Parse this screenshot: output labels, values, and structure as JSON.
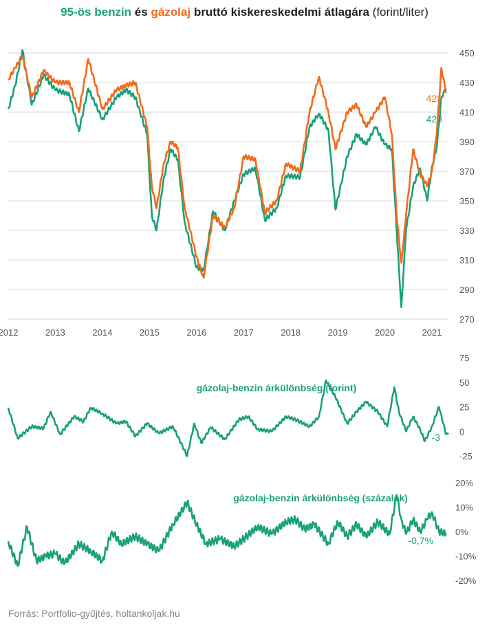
{
  "title": {
    "part1": "95-ös benzin",
    "part2": "és",
    "part3": "gázolaj",
    "part4": "bruttó kiskereskedelmi átlagára",
    "part5": "(forint/liter)"
  },
  "source": "Forrás: Portfolio-gyűjtés, holtankoljak.hu",
  "colors": {
    "benzin": "#1aa07a",
    "gazolaj": "#f26a1b",
    "grid": "#d9d9d9",
    "text": "#555555"
  },
  "chart_data": [
    {
      "type": "line",
      "x_labels": [
        "2012",
        "2013",
        "2014",
        "2015",
        "2016",
        "2017",
        "2018",
        "2019",
        "2020",
        "2021"
      ],
      "yticks": [
        "450",
        "430",
        "410",
        "390",
        "370",
        "350",
        "330",
        "310",
        "290",
        "270"
      ],
      "ylim": [
        270,
        450
      ],
      "series": [
        {
          "name": "95-ös benzin",
          "end_label": "426",
          "points": [
            [
              2012.0,
              412
            ],
            [
              2012.15,
              428
            ],
            [
              2012.3,
              452
            ],
            [
              2012.5,
              415
            ],
            [
              2012.75,
              435
            ],
            [
              2013.0,
              425
            ],
            [
              2013.3,
              422
            ],
            [
              2013.5,
              397
            ],
            [
              2013.7,
              426
            ],
            [
              2014.0,
              405
            ],
            [
              2014.3,
              420
            ],
            [
              2014.5,
              425
            ],
            [
              2014.7,
              420
            ],
            [
              2014.95,
              395
            ],
            [
              2015.05,
              340
            ],
            [
              2015.15,
              330
            ],
            [
              2015.3,
              365
            ],
            [
              2015.45,
              385
            ],
            [
              2015.6,
              378
            ],
            [
              2015.75,
              335
            ],
            [
              2016.0,
              305
            ],
            [
              2016.15,
              303
            ],
            [
              2016.35,
              343
            ],
            [
              2016.6,
              330
            ],
            [
              2016.8,
              350
            ],
            [
              2017.0,
              368
            ],
            [
              2017.25,
              372
            ],
            [
              2017.45,
              337
            ],
            [
              2017.7,
              345
            ],
            [
              2017.9,
              367
            ],
            [
              2018.2,
              366
            ],
            [
              2018.4,
              400
            ],
            [
              2018.6,
              409
            ],
            [
              2018.8,
              398
            ],
            [
              2018.95,
              344
            ],
            [
              2019.2,
              380
            ],
            [
              2019.4,
              395
            ],
            [
              2019.6,
              388
            ],
            [
              2019.8,
              400
            ],
            [
              2020.0,
              388
            ],
            [
              2020.15,
              385
            ],
            [
              2020.25,
              330
            ],
            [
              2020.35,
              278
            ],
            [
              2020.45,
              330
            ],
            [
              2020.6,
              360
            ],
            [
              2020.75,
              372
            ],
            [
              2020.9,
              350
            ],
            [
              2021.0,
              373
            ],
            [
              2021.1,
              385
            ],
            [
              2021.2,
              420
            ],
            [
              2021.3,
              426
            ]
          ]
        },
        {
          "name": "gázolaj",
          "end_label": "423",
          "points": [
            [
              2012.0,
              432
            ],
            [
              2012.15,
              440
            ],
            [
              2012.3,
              448
            ],
            [
              2012.5,
              420
            ],
            [
              2012.75,
              438
            ],
            [
              2013.0,
              430
            ],
            [
              2013.3,
              430
            ],
            [
              2013.5,
              410
            ],
            [
              2013.7,
              446
            ],
            [
              2014.0,
              412
            ],
            [
              2014.3,
              425
            ],
            [
              2014.5,
              428
            ],
            [
              2014.7,
              430
            ],
            [
              2014.95,
              400
            ],
            [
              2015.05,
              360
            ],
            [
              2015.15,
              345
            ],
            [
              2015.3,
              375
            ],
            [
              2015.45,
              390
            ],
            [
              2015.6,
              386
            ],
            [
              2015.75,
              345
            ],
            [
              2016.0,
              312
            ],
            [
              2016.15,
              298
            ],
            [
              2016.35,
              340
            ],
            [
              2016.6,
              332
            ],
            [
              2016.8,
              345
            ],
            [
              2017.0,
              380
            ],
            [
              2017.25,
              378
            ],
            [
              2017.45,
              342
            ],
            [
              2017.7,
              350
            ],
            [
              2017.9,
              375
            ],
            [
              2018.2,
              370
            ],
            [
              2018.4,
              410
            ],
            [
              2018.6,
              434
            ],
            [
              2018.8,
              410
            ],
            [
              2018.95,
              385
            ],
            [
              2019.2,
              410
            ],
            [
              2019.4,
              415
            ],
            [
              2019.6,
              400
            ],
            [
              2019.8,
              410
            ],
            [
              2020.0,
              420
            ],
            [
              2020.15,
              395
            ],
            [
              2020.25,
              340
            ],
            [
              2020.35,
              308
            ],
            [
              2020.45,
              340
            ],
            [
              2020.6,
              385
            ],
            [
              2020.75,
              368
            ],
            [
              2020.9,
              360
            ],
            [
              2021.0,
              370
            ],
            [
              2021.1,
              395
            ],
            [
              2021.2,
              440
            ],
            [
              2021.3,
              423
            ]
          ]
        }
      ]
    },
    {
      "type": "line",
      "yticks": [
        "75",
        "50",
        "25",
        "0",
        "-25"
      ],
      "ylim": [
        -25,
        75
      ],
      "series": [
        {
          "name": "gázolaj-benzin árkülönbség (forint)",
          "end_label": "-3",
          "points": [
            [
              2012.0,
              24
            ],
            [
              2012.2,
              -7
            ],
            [
              2012.5,
              5
            ],
            [
              2012.75,
              3
            ],
            [
              2012.9,
              20
            ],
            [
              2013.1,
              -3
            ],
            [
              2013.4,
              15
            ],
            [
              2013.6,
              10
            ],
            [
              2013.75,
              24
            ],
            [
              2014.0,
              18
            ],
            [
              2014.3,
              8
            ],
            [
              2014.5,
              10
            ],
            [
              2014.7,
              -5
            ],
            [
              2014.95,
              8
            ],
            [
              2015.2,
              -2
            ],
            [
              2015.5,
              5
            ],
            [
              2015.8,
              -25
            ],
            [
              2015.95,
              8
            ],
            [
              2016.1,
              -12
            ],
            [
              2016.3,
              4
            ],
            [
              2016.6,
              -8
            ],
            [
              2016.9,
              12
            ],
            [
              2017.1,
              15
            ],
            [
              2017.3,
              2
            ],
            [
              2017.6,
              0
            ],
            [
              2017.9,
              15
            ],
            [
              2018.1,
              12
            ],
            [
              2018.4,
              5
            ],
            [
              2018.6,
              15
            ],
            [
              2018.75,
              52
            ],
            [
              2018.95,
              35
            ],
            [
              2019.2,
              8
            ],
            [
              2019.4,
              20
            ],
            [
              2019.6,
              30
            ],
            [
              2019.85,
              20
            ],
            [
              2020.05,
              5
            ],
            [
              2020.2,
              45
            ],
            [
              2020.3,
              20
            ],
            [
              2020.45,
              0
            ],
            [
              2020.6,
              15
            ],
            [
              2020.75,
              2
            ],
            [
              2020.85,
              -10
            ],
            [
              2021.0,
              5
            ],
            [
              2021.15,
              25
            ],
            [
              2021.3,
              -3
            ],
            [
              2021.35,
              -3
            ]
          ]
        }
      ]
    },
    {
      "type": "line",
      "yticks": [
        "20%",
        "10%",
        "0%",
        "-10%",
        "-20%"
      ],
      "ylim": [
        -20,
        20
      ],
      "series": [
        {
          "name": "gázolaj-benzin árkülönbség (százalék)",
          "end_label": "-0,7%",
          "points": [
            [
              2012.0,
              -4
            ],
            [
              2012.2,
              -14
            ],
            [
              2012.4,
              2
            ],
            [
              2012.6,
              -12
            ],
            [
              2012.8,
              -10
            ],
            [
              2013.0,
              -9
            ],
            [
              2013.2,
              -13
            ],
            [
              2013.5,
              -5
            ],
            [
              2013.75,
              -8
            ],
            [
              2014.0,
              -12
            ],
            [
              2014.2,
              0
            ],
            [
              2014.4,
              -5
            ],
            [
              2014.7,
              -2
            ],
            [
              2014.95,
              -5
            ],
            [
              2015.2,
              -8
            ],
            [
              2015.5,
              3
            ],
            [
              2015.8,
              12
            ],
            [
              2016.0,
              3
            ],
            [
              2016.2,
              -5
            ],
            [
              2016.5,
              -3
            ],
            [
              2016.8,
              -6
            ],
            [
              2017.0,
              -3
            ],
            [
              2017.3,
              2
            ],
            [
              2017.6,
              -1
            ],
            [
              2017.9,
              4
            ],
            [
              2018.1,
              5
            ],
            [
              2018.3,
              1
            ],
            [
              2018.5,
              3
            ],
            [
              2018.8,
              -5
            ],
            [
              2019.0,
              4
            ],
            [
              2019.2,
              -2
            ],
            [
              2019.4,
              3
            ],
            [
              2019.6,
              -2
            ],
            [
              2019.85,
              4
            ],
            [
              2020.1,
              -1
            ],
            [
              2020.25,
              15
            ],
            [
              2020.35,
              5
            ],
            [
              2020.45,
              -1
            ],
            [
              2020.6,
              5
            ],
            [
              2020.75,
              0
            ],
            [
              2020.9,
              5
            ],
            [
              2021.0,
              8
            ],
            [
              2021.15,
              0
            ],
            [
              2021.3,
              -0.7
            ]
          ]
        }
      ]
    }
  ]
}
